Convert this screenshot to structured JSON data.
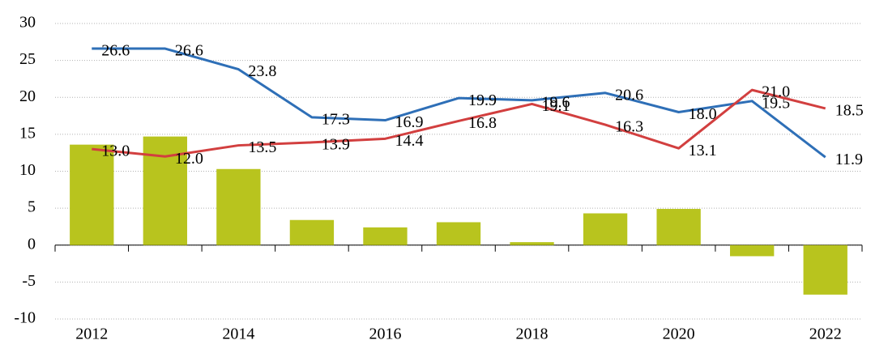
{
  "chart_data": {
    "type": "bar",
    "categories": [
      "2012",
      null,
      "2014",
      null,
      "2016",
      null,
      "2018",
      null,
      "2020",
      null,
      "2022"
    ],
    "ylim": [
      -10,
      30
    ],
    "yticks": [
      -10,
      -5,
      0,
      5,
      10,
      15,
      20,
      25,
      30
    ],
    "grid": true,
    "series": [
      {
        "type": "bar",
        "color": "#b8c41e",
        "values": [
          13.6,
          14.7,
          10.3,
          3.4,
          2.4,
          3.1,
          0.4,
          4.3,
          4.9,
          -1.5,
          -6.7
        ]
      },
      {
        "type": "line",
        "color": "#2e6fb7",
        "values": [
          26.6,
          26.6,
          23.8,
          17.3,
          16.9,
          19.9,
          19.6,
          20.6,
          18.0,
          19.5,
          11.9
        ],
        "value_labels": [
          "26.6",
          "26.6",
          "23.8",
          "17.3",
          "16.9",
          "19.9",
          "19.6",
          "20.6",
          "18.0",
          "19.5",
          "11.9"
        ]
      },
      {
        "type": "line",
        "color": "#d23f3f",
        "values": [
          13.0,
          12.0,
          13.5,
          13.9,
          14.4,
          16.8,
          19.1,
          16.3,
          13.1,
          21.0,
          18.5
        ],
        "value_labels": [
          "13.0",
          "12.0",
          "13.5",
          "13.9",
          "14.4",
          "16.8",
          "19.1",
          "16.3",
          "13.1",
          "21.0",
          "18.5"
        ]
      }
    ]
  }
}
